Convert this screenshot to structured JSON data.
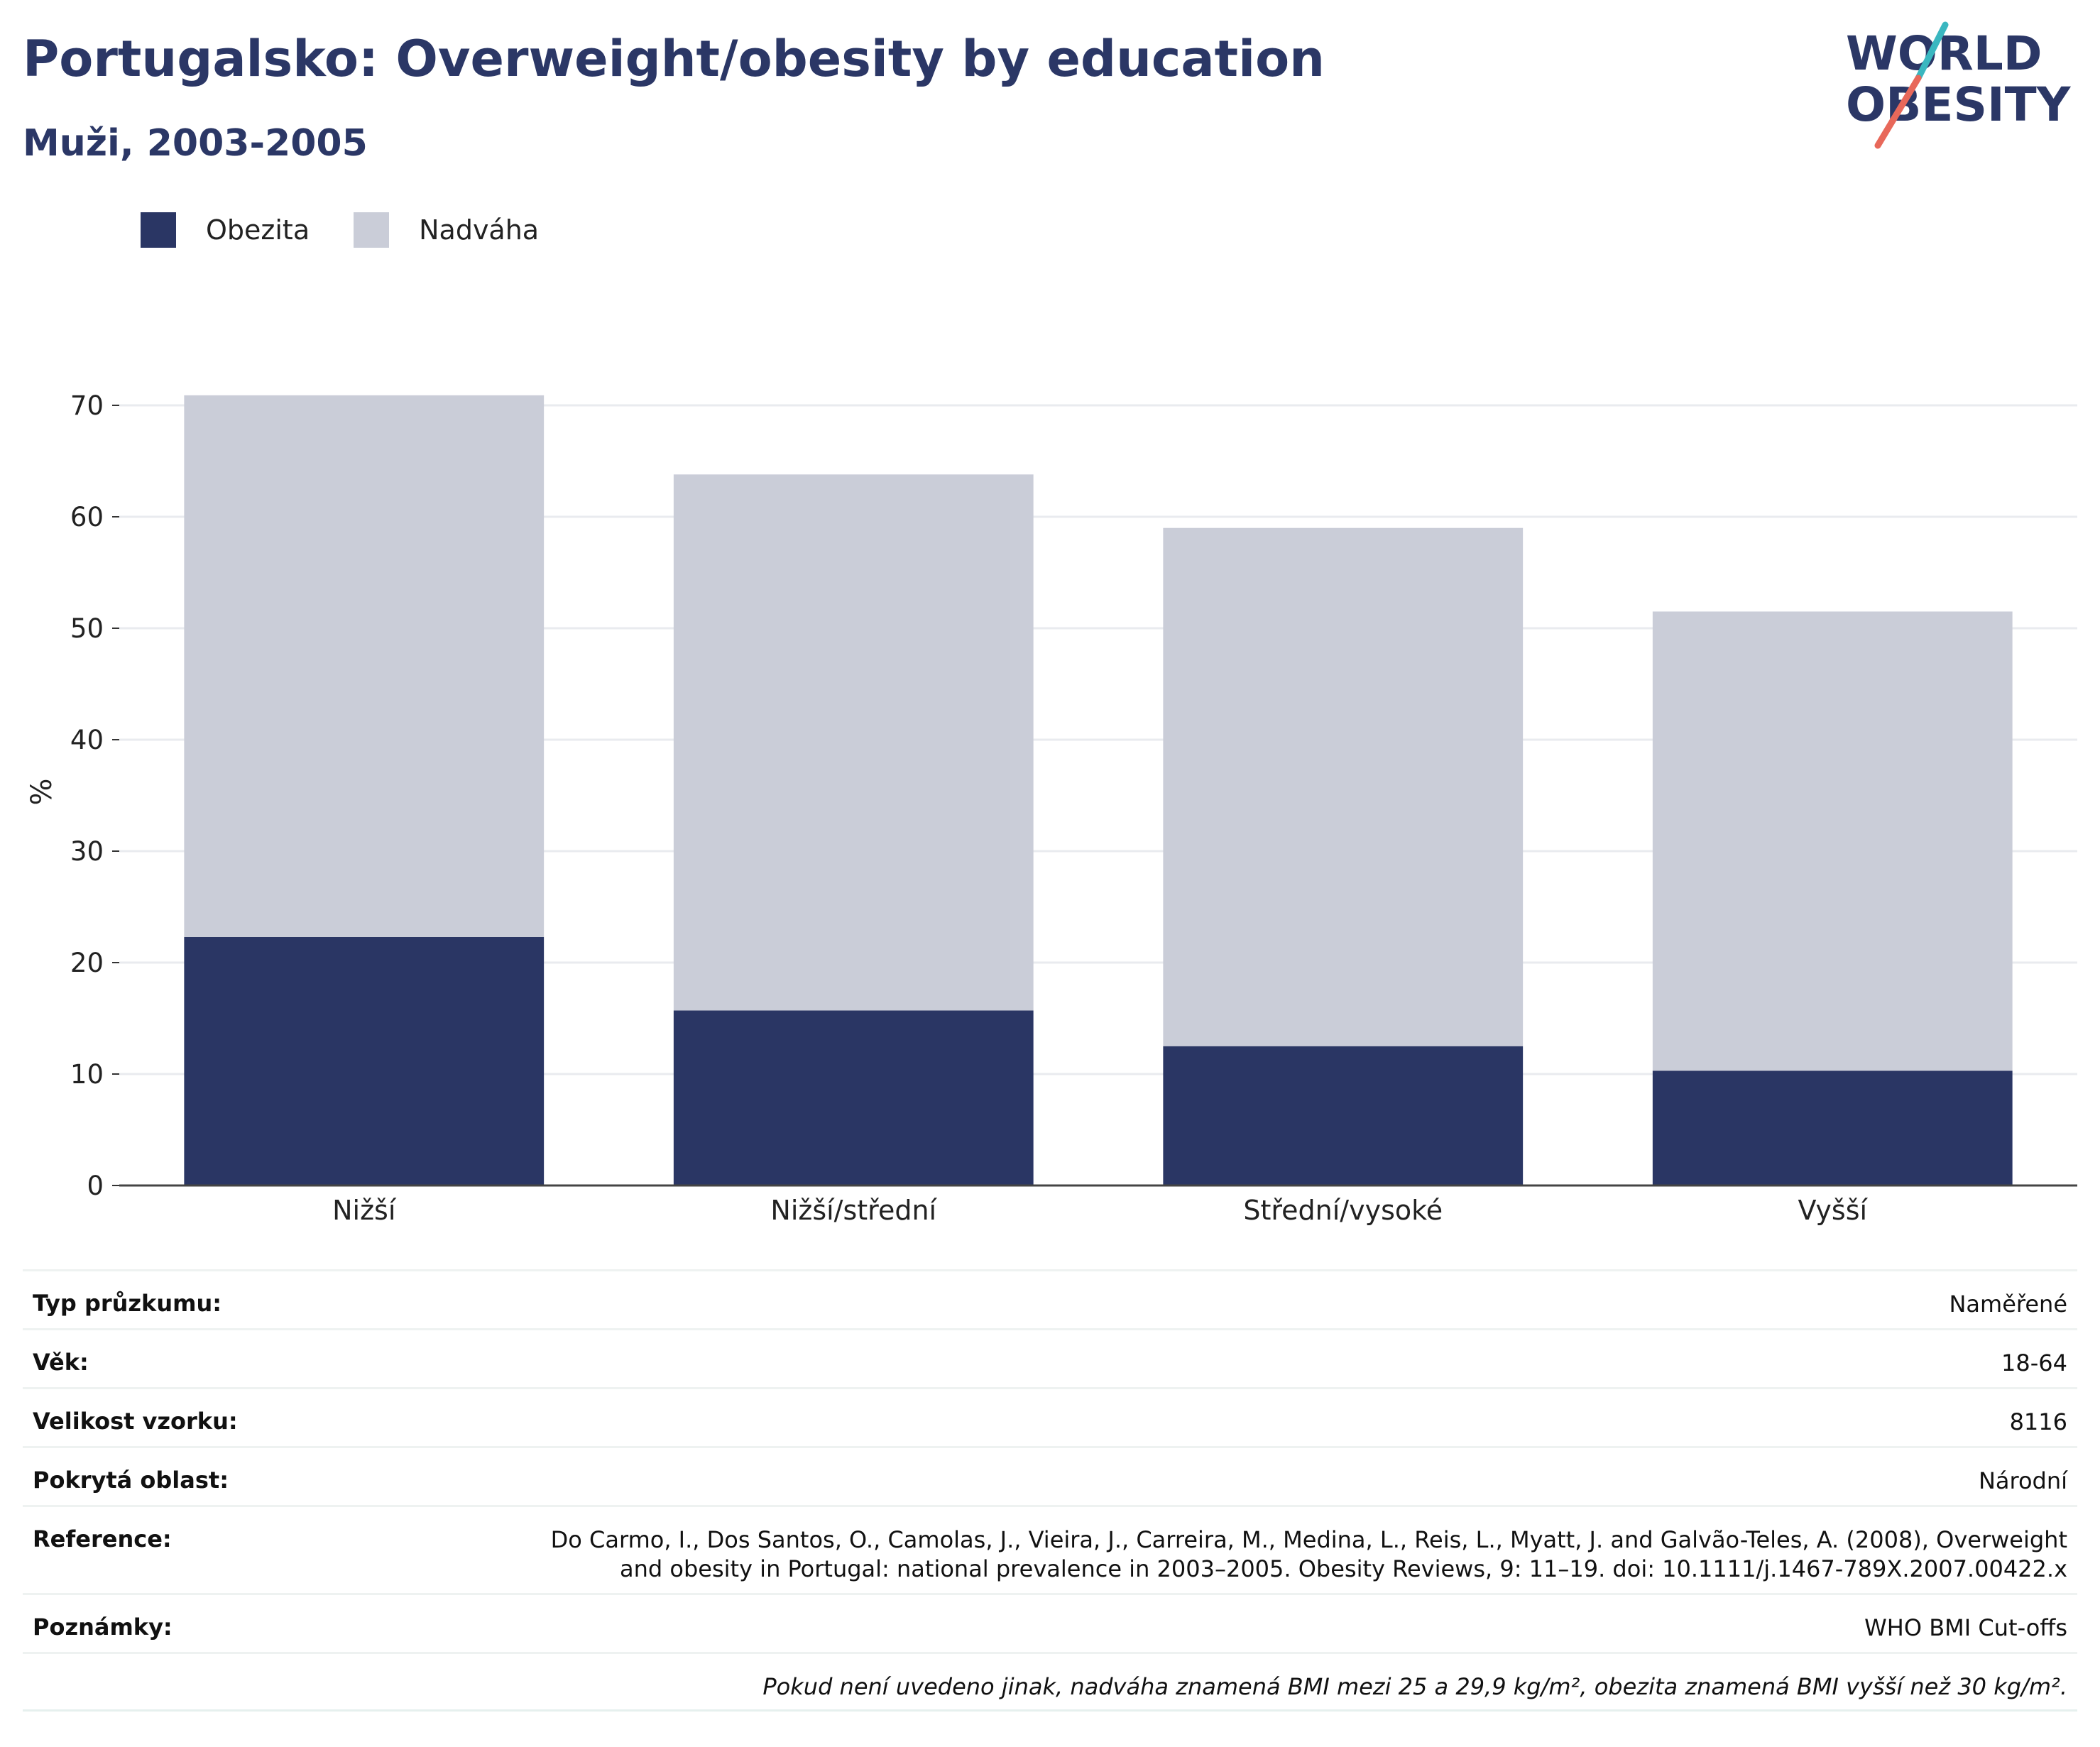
{
  "header": {
    "title": "Portugalsko: Overweight/obesity by education",
    "subtitle": "Muži, 2003-2005"
  },
  "logo": {
    "line1": "WORLD",
    "line2": "OBESITY",
    "colors": {
      "text": "#2b3766",
      "slash_teal": "#3ab7c0",
      "slash_coral": "#e8685a"
    }
  },
  "legend": [
    {
      "name": "Obezita",
      "color": "#2a3664"
    },
    {
      "name": "Nadváha",
      "color": "#cacdd8"
    }
  ],
  "chart_data": {
    "type": "bar",
    "stacked": true,
    "categories": [
      "Nižší",
      "Nižší/střední",
      "Střední/vysoké",
      "Vyšší"
    ],
    "series": [
      {
        "name": "Obezita",
        "color": "#2a3664",
        "values": [
          22.3,
          15.7,
          12.5,
          10.3
        ]
      },
      {
        "name": "Nadváha",
        "color": "#cacdd8",
        "values": [
          48.6,
          48.1,
          46.5,
          41.2
        ]
      }
    ],
    "ylabel": "%",
    "ylim": [
      0,
      70
    ],
    "yticks": [
      0,
      10,
      20,
      30,
      40,
      50,
      60,
      70
    ],
    "grid": true
  },
  "info": {
    "survey_type": {
      "label": "Typ průzkumu:",
      "value": "Naměřené"
    },
    "age": {
      "label": "Věk:",
      "value": "18-64"
    },
    "sample_size": {
      "label": "Velikost vzorku:",
      "value": "8116"
    },
    "area": {
      "label": "Pokrytá oblast:",
      "value": "Národní"
    },
    "reference": {
      "label": "Reference:",
      "value_line1": "Do Carmo, I., Dos Santos, O., Camolas, J., Vieira, J., Carreira, M., Medina, L., Reis, L., Myatt, J. and Galvão-Teles, A. (2008), Overweight",
      "value_line2": "and obesity in Portugal: national prevalence in 2003–2005. Obesity Reviews, 9: 11–19. doi: 10.1111/j.1467-789X.2007.00422.x"
    },
    "notes": {
      "label": "Poznámky:",
      "value": "WHO BMI Cut-offs"
    },
    "footnote": "Pokud není uvedeno jinak, nadváha znamená BMI mezi 25 a 29,9 kg/m², obezita znamená BMI vyšší než 30 kg/m²."
  }
}
